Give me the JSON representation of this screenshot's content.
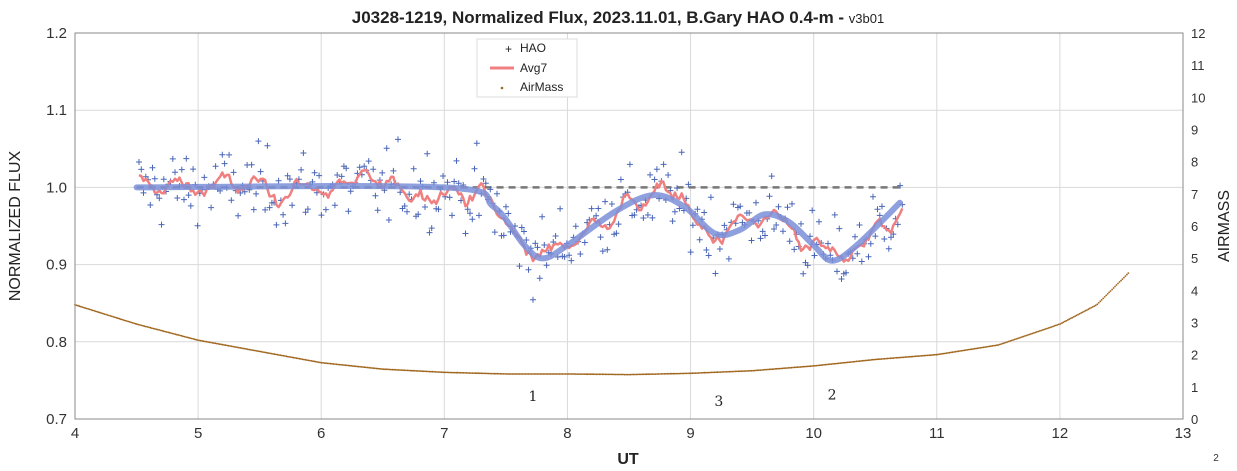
{
  "chart_data": {
    "type": "scatter",
    "title": "J0328-1219, Normalized Flux, 2023.11.01, B.Gary HAO 0.4-m - ",
    "title_suffix": "v3b01",
    "xlabel": "UT",
    "ylabel": "NORMALIZED FLUX",
    "y2label": "AIRMASS",
    "xlim": [
      4,
      13
    ],
    "ylim": [
      0.7,
      1.2
    ],
    "y2lim": [
      0,
      12
    ],
    "x_ticks": [
      "4",
      "5",
      "6",
      "7",
      "8",
      "9",
      "10",
      "11",
      "12",
      "13"
    ],
    "y_ticks": [
      "0.7",
      "0.8",
      "0.9",
      "1.0",
      "1.1",
      "1.2"
    ],
    "y2_ticks": [
      "0",
      "1",
      "2",
      "3",
      "4",
      "5",
      "6",
      "7",
      "8",
      "9",
      "10",
      "11",
      "12"
    ],
    "grid": true,
    "legend_position": "top-center",
    "colors": {
      "hao": "#4a66b8",
      "avg7": "#f08080",
      "model": "#7b8fd8",
      "airmass": "#a0661e",
      "reference": "#777777"
    },
    "reference_level": 1.0,
    "reference_x_range": [
      4.5,
      10.7
    ],
    "series": [
      {
        "name": "HAO",
        "kind": "points",
        "x_range": [
          4.52,
          10.72
        ],
        "count": 340,
        "scatter_sd": 0.035,
        "trend": [
          [
            4.5,
            1.0
          ],
          [
            7.0,
            1.0
          ],
          [
            7.35,
            0.985
          ],
          [
            7.6,
            0.93
          ],
          [
            7.8,
            0.91
          ],
          [
            8.0,
            0.93
          ],
          [
            8.4,
            0.975
          ],
          [
            8.8,
            0.99
          ],
          [
            9.0,
            0.97
          ],
          [
            9.2,
            0.94
          ],
          [
            9.4,
            0.955
          ],
          [
            9.6,
            0.965
          ],
          [
            9.8,
            0.955
          ],
          [
            10.0,
            0.92
          ],
          [
            10.2,
            0.905
          ],
          [
            10.4,
            0.93
          ],
          [
            10.7,
            0.975
          ]
        ]
      },
      {
        "name": "Avg7",
        "kind": "line",
        "x_range": [
          4.52,
          10.72
        ],
        "smoothing_window": 7
      },
      {
        "name": "AirMass",
        "kind": "points",
        "points": [
          [
            4.0,
            3.55
          ],
          [
            4.5,
            2.95
          ],
          [
            5.0,
            2.45
          ],
          [
            5.5,
            2.1
          ],
          [
            6.0,
            1.75
          ],
          [
            6.5,
            1.55
          ],
          [
            7.0,
            1.45
          ],
          [
            7.5,
            1.4
          ],
          [
            8.0,
            1.4
          ],
          [
            8.5,
            1.38
          ],
          [
            9.0,
            1.42
          ],
          [
            9.5,
            1.5
          ],
          [
            10.0,
            1.65
          ],
          [
            10.5,
            1.85
          ],
          [
            11.0,
            2.0
          ],
          [
            11.5,
            2.3
          ],
          [
            12.0,
            2.95
          ],
          [
            12.3,
            3.55
          ],
          [
            12.56,
            4.55
          ]
        ]
      }
    ],
    "model_curve": [
      [
        4.5,
        1.0
      ],
      [
        7.0,
        1.0
      ],
      [
        7.4,
        0.975
      ],
      [
        7.65,
        0.925
      ],
      [
        7.8,
        0.908
      ],
      [
        8.0,
        0.925
      ],
      [
        8.4,
        0.97
      ],
      [
        8.7,
        0.99
      ],
      [
        8.95,
        0.975
      ],
      [
        9.2,
        0.94
      ],
      [
        9.4,
        0.945
      ],
      [
        9.6,
        0.965
      ],
      [
        9.8,
        0.955
      ],
      [
        10.0,
        0.925
      ],
      [
        10.15,
        0.905
      ],
      [
        10.35,
        0.925
      ],
      [
        10.7,
        0.98
      ]
    ],
    "annotations": [
      {
        "text": "1",
        "x": 7.72,
        "y": 0.723
      },
      {
        "text": "3",
        "x": 9.23,
        "y": 0.717
      },
      {
        "text": "2",
        "x": 10.15,
        "y": 0.725
      }
    ],
    "corner_label": "2"
  }
}
